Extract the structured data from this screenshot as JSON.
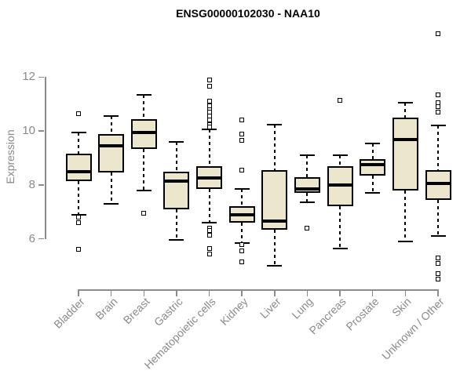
{
  "chart_data": {
    "type": "boxplot",
    "title": "ENSG00000102030 - NAA10",
    "ylabel": "Expression",
    "xlabel": "",
    "yticks": [
      6,
      8,
      10,
      12
    ],
    "ylim": [
      4.1,
      13.7
    ],
    "grid": false,
    "legend": "none",
    "whisker_style": "dashed",
    "outlier_marker": "open-square",
    "categories": [
      "Bladder",
      "Brain",
      "Breast",
      "Gastric",
      "Hematopoietic cells",
      "Kidney",
      "Liver",
      "Lung",
      "Pancreas",
      "Prostate",
      "Skin",
      "Unknown / Other"
    ],
    "boxes": [
      {
        "category": "Bladder",
        "low": 6.9,
        "q1": 8.15,
        "median": 8.5,
        "q3": 9.15,
        "high": 9.95,
        "outliers": [
          10.65,
          6.8,
          6.6,
          5.6
        ]
      },
      {
        "category": "Brain",
        "low": 7.3,
        "q1": 8.45,
        "median": 9.45,
        "q3": 9.9,
        "high": 10.55,
        "outliers": []
      },
      {
        "category": "Breast",
        "low": 7.8,
        "q1": 9.35,
        "median": 9.95,
        "q3": 10.45,
        "high": 11.35,
        "outliers": [
          6.95
        ]
      },
      {
        "category": "Gastric",
        "low": 5.95,
        "q1": 7.1,
        "median": 8.15,
        "q3": 8.5,
        "high": 9.6,
        "outliers": []
      },
      {
        "category": "Hematopoietic cells",
        "low": 6.6,
        "q1": 7.85,
        "median": 8.25,
        "q3": 8.7,
        "high": 10.05,
        "outliers": [
          11.9,
          11.65,
          11.1,
          10.95,
          10.8,
          10.7,
          10.55,
          10.4,
          10.25,
          10.15,
          6.4,
          6.3,
          6.15,
          5.65,
          5.45
        ]
      },
      {
        "category": "Kidney",
        "low": 5.85,
        "q1": 6.6,
        "median": 6.9,
        "q3": 7.2,
        "high": 7.85,
        "outliers": [
          10.4,
          9.9,
          9.65,
          8.55,
          5.8,
          5.55,
          5.15
        ]
      },
      {
        "category": "Liver",
        "low": 5.0,
        "q1": 6.35,
        "median": 6.65,
        "q3": 8.55,
        "high": 10.25,
        "outliers": []
      },
      {
        "category": "Lung",
        "low": 7.35,
        "q1": 7.7,
        "median": 7.85,
        "q3": 8.3,
        "high": 9.1,
        "outliers": [
          6.4
        ]
      },
      {
        "category": "Pancreas",
        "low": 5.65,
        "q1": 7.2,
        "median": 8.0,
        "q3": 8.7,
        "high": 9.1,
        "outliers": [
          11.15
        ]
      },
      {
        "category": "Prostate",
        "low": 7.7,
        "q1": 8.35,
        "median": 8.75,
        "q3": 8.95,
        "high": 9.55,
        "outliers": []
      },
      {
        "category": "Skin",
        "low": 5.9,
        "q1": 7.8,
        "median": 9.7,
        "q3": 10.5,
        "high": 11.05,
        "outliers": []
      },
      {
        "category": "Unknown / Other",
        "low": 6.1,
        "q1": 7.45,
        "median": 8.05,
        "q3": 8.55,
        "high": 10.2,
        "outliers": [
          13.6,
          11.35,
          11.05,
          10.9,
          10.7,
          5.3,
          5.1,
          4.7,
          4.5
        ]
      }
    ],
    "colors": {
      "box_fill": "#ece6cd",
      "box_border": "#000000",
      "median": "#000000",
      "whisker": "#000000",
      "axis": "#8c8c8c",
      "tick_label": "#8a8a8a",
      "title": "#000000",
      "background": "#ffffff"
    }
  }
}
